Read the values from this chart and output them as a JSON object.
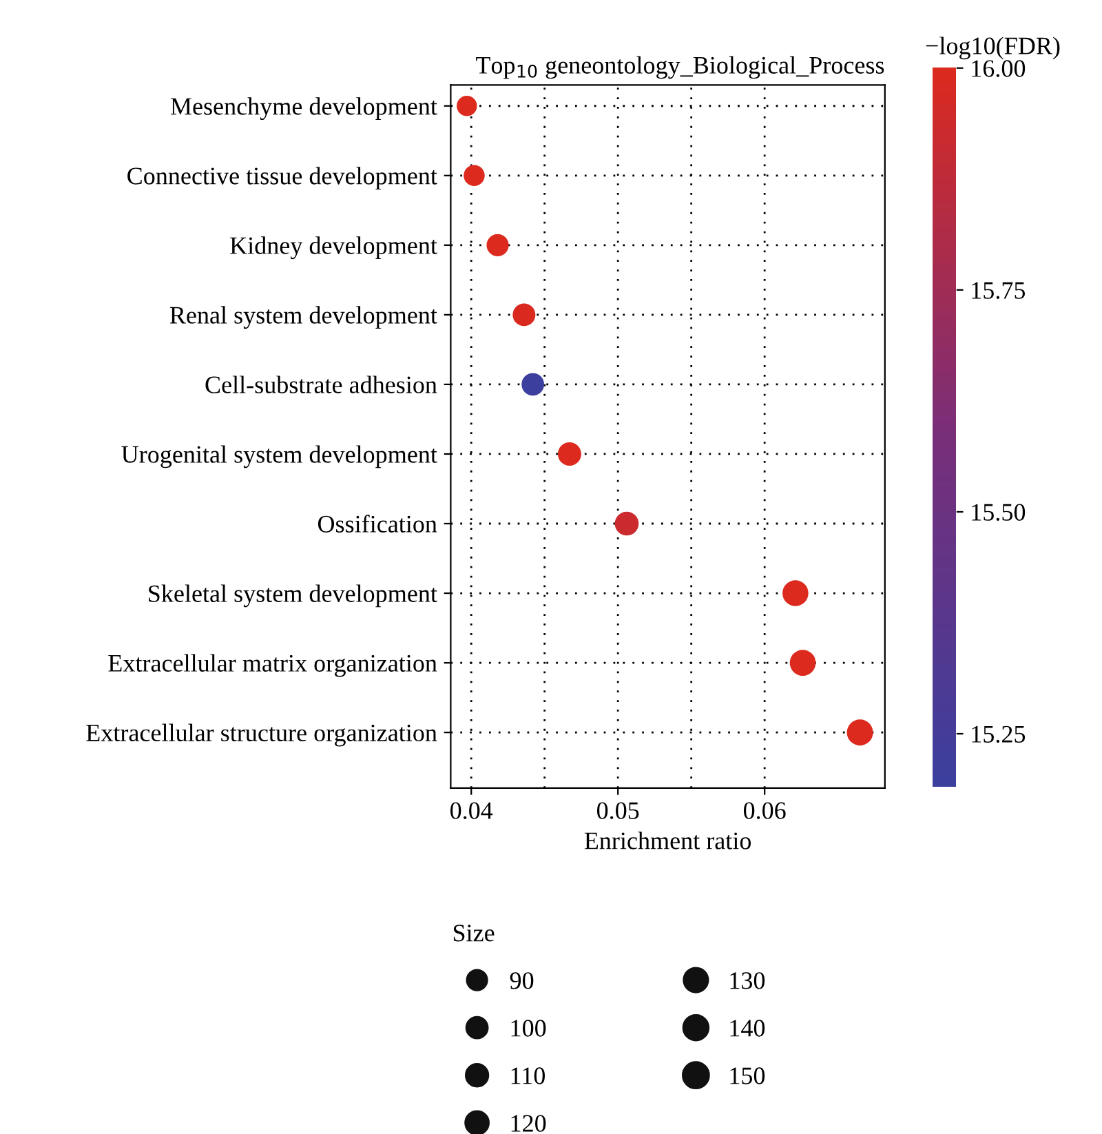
{
  "chart_data": {
    "type": "bubble",
    "title": "Top$_{10}$ geneontology_Biological_Process",
    "xlabel": "Enrichment ratio",
    "clabel": "−log10(FDR)",
    "legend_title": "Size",
    "categories": [
      "Mesenchyme development",
      "Connective tissue development",
      "Kidney development",
      "Renal system development",
      "Cell-substrate adhesion",
      "Urogenital system development",
      "Ossification",
      "Skeletal system development",
      "Extracellular matrix organization",
      "Extracellular structure organization"
    ],
    "values": [
      0.0397,
      0.0402,
      0.0418,
      0.0436,
      0.0442,
      0.0467,
      0.0506,
      0.0621,
      0.0626,
      0.0665
    ],
    "sizes": [
      90,
      97,
      108,
      113,
      112,
      120,
      125,
      147,
      148,
      150
    ],
    "cvalues": [
      16.0,
      16.0,
      16.0,
      15.99,
      15.2,
      16.0,
      15.93,
      16.0,
      16.0,
      16.0
    ],
    "size_legend": [
      90,
      100,
      110,
      120,
      130,
      140,
      150
    ],
    "orientation": "horizontal",
    "xlim": [
      0.0386,
      0.0682
    ],
    "xticks": [
      {
        "value": 0.04,
        "label": "0.04"
      },
      {
        "value": 0.05,
        "label": "0.05"
      },
      {
        "value": 0.06,
        "label": "0.06"
      }
    ],
    "clim": [
      15.19,
      16.0
    ],
    "cticks": [
      {
        "value": 15.25,
        "label": "15.25"
      },
      {
        "value": 15.5,
        "label": "15.50"
      },
      {
        "value": 15.75,
        "label": "15.75"
      },
      {
        "value": 16.0,
        "label": "16.00"
      }
    ],
    "grid": true
  }
}
